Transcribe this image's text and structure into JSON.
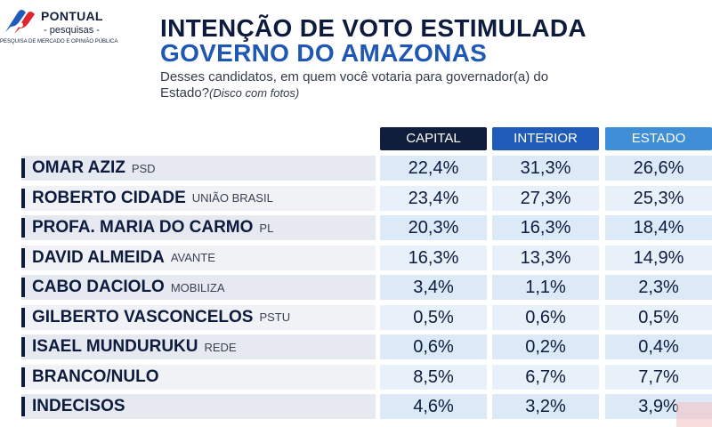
{
  "logo": {
    "name": "PONTUAL",
    "sub": "- pesquisas -",
    "tagline": "PESQUISA DE MERCADO E OPINIÃO PÚBLICA"
  },
  "title_line1": "INTENÇÃO DE VOTO ESTIMULADA",
  "title_line2": "GOVERNO DO AMAZONAS",
  "question": "Desses candidatos, em quem você votaria para governador(a) do Estado?",
  "question_note": "(Disco com fotos)",
  "colors": {
    "capital": "#0f1e3d",
    "interior": "#1f5bb8",
    "estado": "#3f8ed6",
    "title_dark": "#0d1b3e",
    "title_blue": "#1f57b5"
  },
  "chart_data": {
    "type": "table",
    "columns": [
      "CAPITAL",
      "INTERIOR",
      "ESTADO"
    ],
    "rows": [
      {
        "name": "OMAR AZIZ",
        "party": "PSD",
        "values": [
          "22,4%",
          "31,3%",
          "26,6%"
        ]
      },
      {
        "name": "ROBERTO CIDADE",
        "party": "UNIÃO BRASIL",
        "values": [
          "23,4%",
          "27,3%",
          "25,3%"
        ]
      },
      {
        "name": "PROFA. MARIA DO CARMO",
        "party": "PL",
        "values": [
          "20,3%",
          "16,3%",
          "18,4%"
        ]
      },
      {
        "name": "DAVID ALMEIDA",
        "party": "AVANTE",
        "values": [
          "16,3%",
          "13,3%",
          "14,9%"
        ]
      },
      {
        "name": "CABO DACIOLO",
        "party": "MOBILIZA",
        "values": [
          "3,4%",
          "1,1%",
          "2,3%"
        ]
      },
      {
        "name": "GILBERTO VASCONCELOS",
        "party": "PSTU",
        "values": [
          "0,5%",
          "0,6%",
          "0,5%"
        ]
      },
      {
        "name": "ISAEL MUNDURUKU",
        "party": "REDE",
        "values": [
          "0,6%",
          "0,2%",
          "0,4%"
        ]
      },
      {
        "name": "BRANCO/NULO",
        "party": "",
        "values": [
          "8,5%",
          "6,7%",
          "7,7%"
        ]
      },
      {
        "name": "INDECISOS",
        "party": "",
        "values": [
          "4,6%",
          "3,2%",
          "3,9%"
        ]
      }
    ]
  }
}
